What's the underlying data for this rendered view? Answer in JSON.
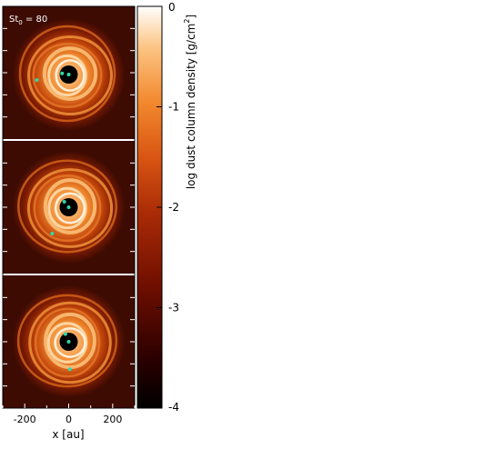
{
  "figure": {
    "panel_label": "St",
    "panel_label_sub": "0",
    "panel_label_value": " = 80",
    "colorbar": {
      "label": "log dust column density [g/cm",
      "label_sup": "2",
      "label_end": "]",
      "ticks": [
        "0",
        "-1",
        "-2",
        "-3",
        "-4"
      ],
      "range": [
        -4,
        0
      ],
      "colormap": [
        "#000000",
        "#3a0000",
        "#7a1200",
        "#b43008",
        "#e06418",
        "#f59a40",
        "#fbd3a0",
        "#ffffff"
      ]
    },
    "x_axis": {
      "label": "x [au]",
      "ticks": [
        "-200",
        "0",
        "200"
      ],
      "tick_values": [
        -200,
        0,
        200
      ],
      "range": [
        -300,
        300
      ]
    },
    "panels": [
      {
        "name": "top",
        "dots": [
          [
            0,
            0
          ],
          [
            -30,
            5
          ],
          [
            -145,
            -25
          ]
        ]
      },
      {
        "name": "middle",
        "dots": [
          [
            0,
            0
          ],
          [
            -20,
            25
          ],
          [
            -75,
            -120
          ]
        ]
      },
      {
        "name": "bottom",
        "dots": [
          [
            0,
            0
          ],
          [
            -15,
            35
          ],
          [
            5,
            -125
          ]
        ]
      }
    ],
    "dot_color": "#2fd9a8",
    "background_color": "#3d0b02"
  }
}
